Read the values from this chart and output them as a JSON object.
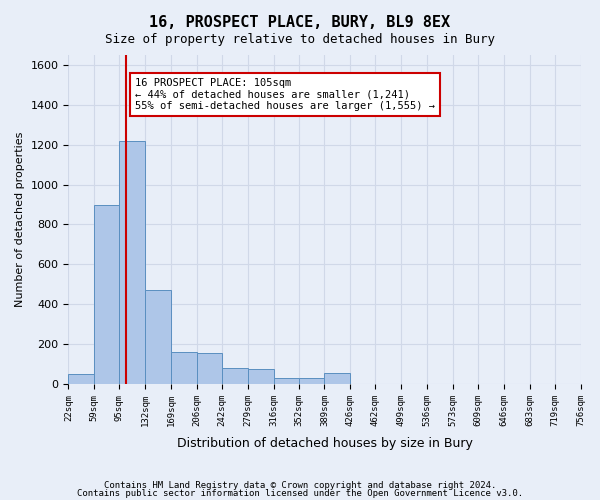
{
  "title": "16, PROSPECT PLACE, BURY, BL9 8EX",
  "subtitle": "Size of property relative to detached houses in Bury",
  "xlabel": "Distribution of detached houses by size in Bury",
  "ylabel": "Number of detached properties",
  "footer_line1": "Contains HM Land Registry data © Crown copyright and database right 2024.",
  "footer_line2": "Contains public sector information licensed under the Open Government Licence v3.0.",
  "annotation_title": "16 PROSPECT PLACE: 105sqm",
  "annotation_line2": "← 44% of detached houses are smaller (1,241)",
  "annotation_line3": "55% of semi-detached houses are larger (1,555) →",
  "property_size": 105,
  "bar_edges": [
    22,
    59,
    95,
    132,
    169,
    206,
    242,
    279,
    316,
    352,
    389,
    426,
    462,
    499,
    536,
    573,
    609,
    646,
    683,
    719,
    756
  ],
  "bar_heights": [
    50,
    900,
    1220,
    470,
    160,
    155,
    80,
    75,
    30,
    30,
    55,
    0,
    0,
    0,
    0,
    0,
    0,
    0,
    0,
    0
  ],
  "bar_color": "#aec6e8",
  "bar_edge_color": "#5a8fc0",
  "vline_color": "#cc0000",
  "vline_x": 105,
  "ylim": [
    0,
    1650
  ],
  "yticks": [
    0,
    200,
    400,
    600,
    800,
    1000,
    1200,
    1400,
    1600
  ],
  "grid_color": "#d0d8e8",
  "bg_color": "#e8eef8",
  "annotation_box_color": "#ffffff",
  "annotation_box_edge": "#cc0000"
}
